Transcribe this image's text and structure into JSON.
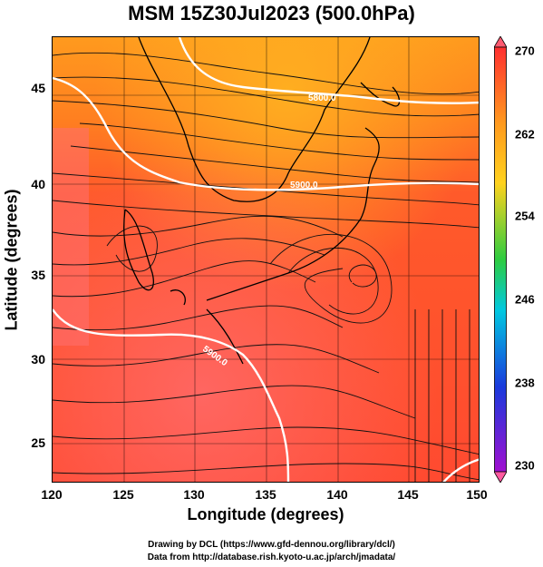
{
  "title": "MSM 15Z30Jul2023 (500.0hPa)",
  "map": {
    "xlabel": "Longitude (degrees)",
    "ylabel": "Latitude  (degrees)",
    "x_ticks": [
      "120",
      "125",
      "130",
      "135",
      "140",
      "145",
      "150"
    ],
    "y_ticks": [
      "25",
      "30",
      "35",
      "40",
      "45"
    ],
    "contour_labels": [
      "5800.0",
      "5900.0",
      "5900.0"
    ],
    "field_colors": {
      "warm": "#ff6a3a",
      "warmer": "#ff8a5a",
      "orange": "#ff9a1e",
      "light_orange": "#ffb020"
    }
  },
  "colorbar": {
    "ticks": [
      "270",
      "262",
      "254",
      "246",
      "238",
      "230"
    ],
    "colors": [
      "#ff3030",
      "#ff9a1e",
      "#ffd21e",
      "#2ecc40",
      "#00c8e0",
      "#1a3adc",
      "#a010d0"
    ]
  },
  "footer": {
    "line1": "Drawing by DCL (https://www.gfd-dennou.org/library/dcl/)",
    "line2": "Data from http://database.rish.kyoto-u.ac.jp/arch/jmadata/"
  }
}
